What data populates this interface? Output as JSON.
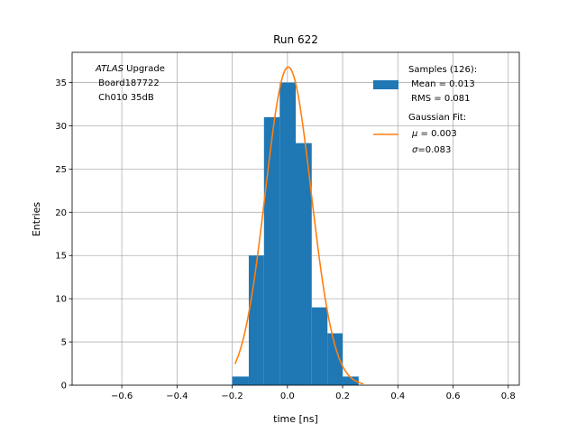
{
  "chart_data": {
    "type": "bar",
    "title": "Run 622",
    "xlabel": "time [ns]",
    "ylabel": "Entries",
    "xlim": [
      -0.78,
      0.84
    ],
    "ylim": [
      0,
      38.5
    ],
    "xticks": [
      -0.6,
      -0.4,
      -0.2,
      0.0,
      0.2,
      0.4,
      0.6,
      0.8
    ],
    "xtick_labels": [
      "−0.6",
      "−0.4",
      "−0.2",
      "0.0",
      "0.2",
      "0.4",
      "0.6",
      "0.8"
    ],
    "yticks": [
      0,
      5,
      10,
      15,
      20,
      25,
      30,
      35
    ],
    "yticklabels": [
      "0",
      "5",
      "10",
      "15",
      "20",
      "25",
      "30",
      "35"
    ],
    "grid": true,
    "legend_position": "top-right",
    "histogram": {
      "color": "#1f77b4",
      "bin_edges": [
        -0.2,
        -0.14,
        -0.085,
        -0.028,
        0.03,
        0.088,
        0.145,
        0.2,
        0.258
      ],
      "counts": [
        1,
        15,
        31,
        35,
        28,
        9,
        6,
        1
      ]
    },
    "fit": {
      "color": "#ff7f0e",
      "mu": 0.003,
      "sigma": 0.083,
      "amplitude": 36.8,
      "x_range": [
        -0.19,
        0.275
      ]
    },
    "legend": {
      "samples_line1": "Samples (126):",
      "samples_line2": " Mean = 0.013",
      "samples_line3": " RMS = 0.081",
      "fit_line1": "Gaussian Fit:",
      "fit_line2_suffix": " = 0.003",
      "fit_line3_suffix": "=0.083",
      "mu_symbol": "μ",
      "sigma_symbol": "σ"
    },
    "annotation": {
      "line1_italic": "ATLAS",
      "line1_rest": " Upgrade",
      "line2": " Board187722",
      "line3": " Ch010 35dB"
    }
  }
}
